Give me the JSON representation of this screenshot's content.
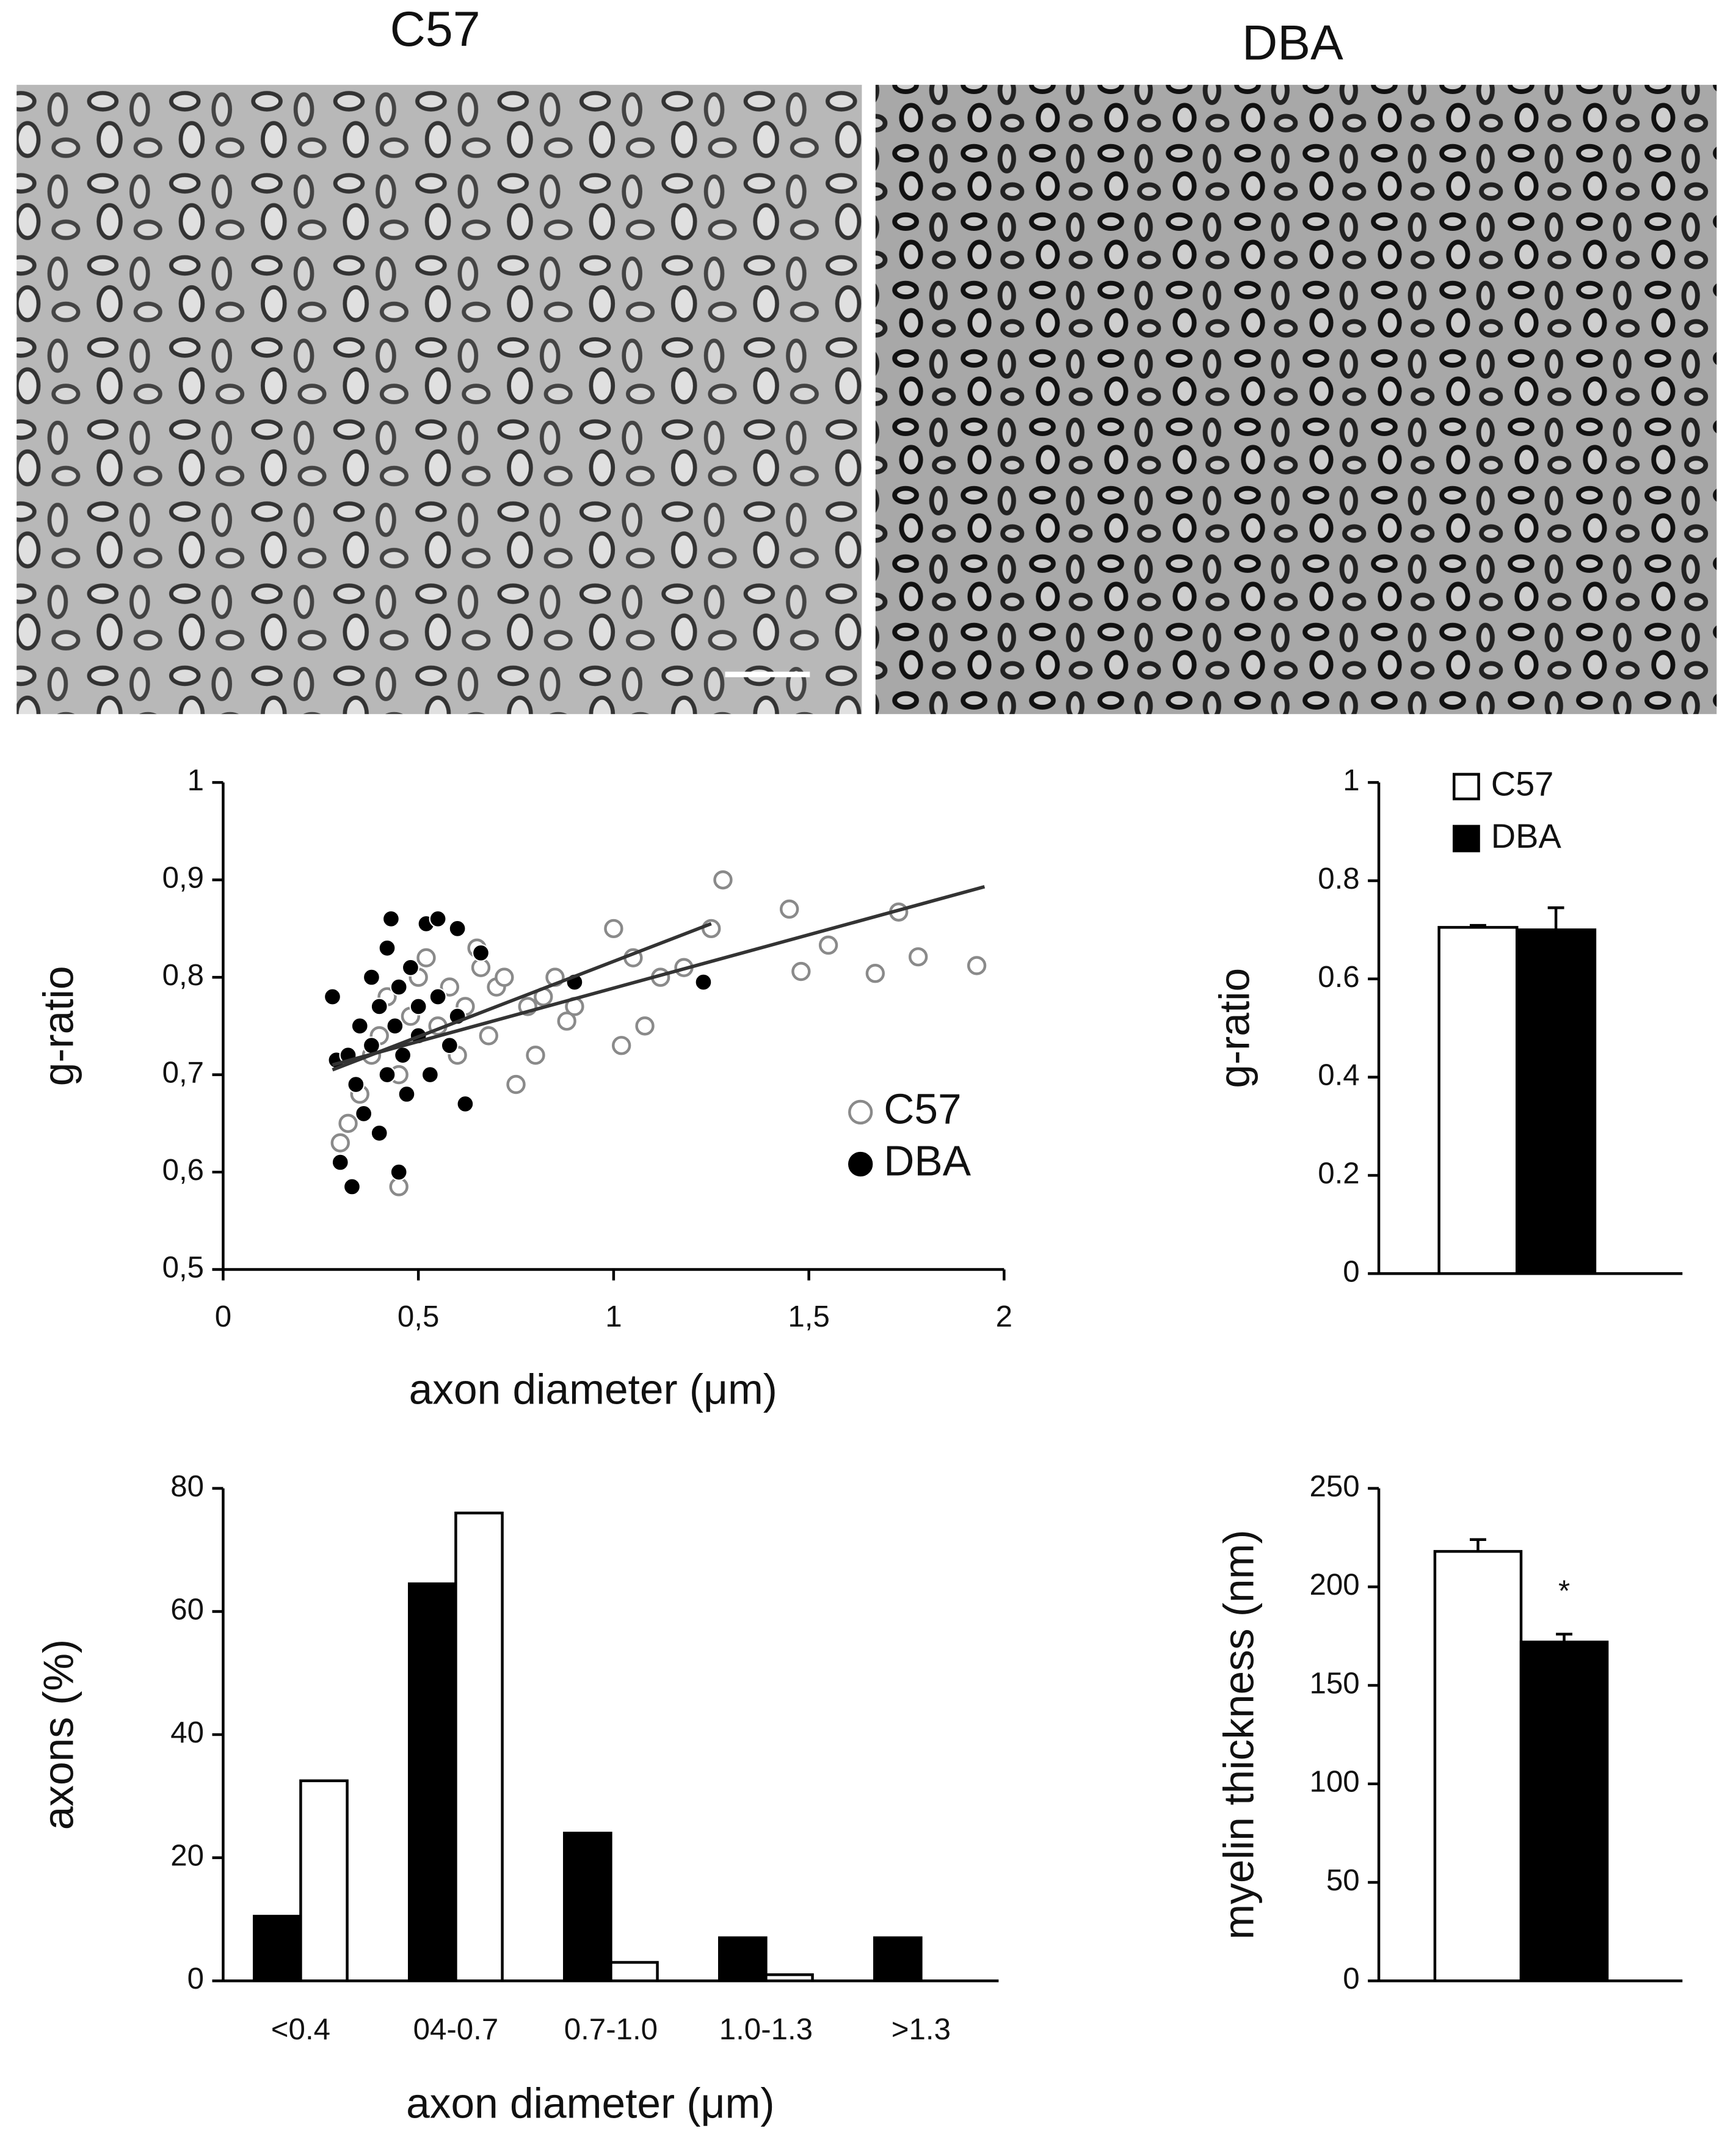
{
  "images": [
    {
      "label": "C57"
    },
    {
      "label": "DBA"
    }
  ],
  "chart_data": [
    {
      "type": "scatter",
      "xlabel": "axon diameter (μm)",
      "ylabel": "g-ratio",
      "xlim": [
        0,
        2
      ],
      "xticks": [
        0,
        {
          "value": 0.5,
          "label": "0,5"
        },
        1,
        {
          "value": 1.5,
          "label": "1,5"
        },
        2
      ],
      "ylim": [
        0.5,
        1
      ],
      "yticks": [
        {
          "value": 0.5,
          "label": "0,5"
        },
        {
          "value": 0.6,
          "label": "0,6"
        },
        {
          "value": 0.7,
          "label": "0,7"
        },
        {
          "value": 0.8,
          "label": "0,8"
        },
        {
          "value": 0.9,
          "label": "0,9"
        },
        1
      ],
      "legend": "lower right",
      "series": [
        {
          "name": "C57",
          "marker": "open",
          "color": "#8a8a8a",
          "x": [
            0.3,
            0.32,
            0.35,
            0.38,
            0.4,
            0.42,
            0.45,
            0.45,
            0.48,
            0.5,
            0.52,
            0.55,
            0.58,
            0.6,
            0.62,
            0.65,
            0.66,
            0.68,
            0.7,
            0.72,
            0.75,
            0.78,
            0.8,
            0.82,
            0.85,
            0.88,
            0.9,
            1.0,
            1.02,
            1.05,
            1.08,
            1.12,
            1.18,
            1.25,
            1.28,
            1.45,
            1.48,
            1.55,
            1.67,
            1.73,
            1.78,
            1.93
          ],
          "y": [
            0.63,
            0.65,
            0.68,
            0.72,
            0.74,
            0.78,
            0.585,
            0.7,
            0.76,
            0.8,
            0.82,
            0.75,
            0.79,
            0.72,
            0.77,
            0.83,
            0.81,
            0.74,
            0.79,
            0.8,
            0.69,
            0.77,
            0.72,
            0.78,
            0.8,
            0.755,
            0.77,
            0.85,
            0.73,
            0.82,
            0.75,
            0.8,
            0.81,
            0.85,
            0.9,
            0.87,
            0.806,
            0.833,
            0.804,
            0.867,
            0.821,
            0.812
          ]
        },
        {
          "name": "DBA",
          "marker": "filled",
          "color": "#000000",
          "x": [
            0.28,
            0.29,
            0.3,
            0.32,
            0.33,
            0.34,
            0.35,
            0.36,
            0.38,
            0.38,
            0.4,
            0.4,
            0.42,
            0.42,
            0.43,
            0.44,
            0.45,
            0.45,
            0.46,
            0.47,
            0.48,
            0.5,
            0.5,
            0.52,
            0.53,
            0.55,
            0.55,
            0.58,
            0.6,
            0.6,
            0.62,
            0.66,
            0.9,
            1.23
          ],
          "y": [
            0.78,
            0.715,
            0.61,
            0.72,
            0.585,
            0.69,
            0.75,
            0.66,
            0.73,
            0.8,
            0.77,
            0.64,
            0.7,
            0.83,
            0.86,
            0.75,
            0.6,
            0.79,
            0.72,
            0.68,
            0.81,
            0.74,
            0.77,
            0.855,
            0.7,
            0.86,
            0.78,
            0.73,
            0.85,
            0.76,
            0.67,
            0.825,
            0.795,
            0.795
          ]
        }
      ],
      "trend_lines": [
        {
          "color": "#333333",
          "x": [
            0.28,
            1.95
          ],
          "y": [
            0.71,
            0.893
          ]
        },
        {
          "color": "#333333",
          "x": [
            0.28,
            1.25
          ],
          "y": [
            0.705,
            0.855
          ]
        }
      ]
    },
    {
      "type": "bar",
      "ylabel": "g-ratio",
      "ylim": [
        0,
        1
      ],
      "yticks": [
        0,
        0.2,
        0.4,
        0.6,
        0.8,
        1
      ],
      "legend": "upper left",
      "series": [
        {
          "name": "C57",
          "color": "#ffffff",
          "values": [
            0.705
          ],
          "errors": [
            0.004
          ]
        },
        {
          "name": "DBA",
          "color": "#000000",
          "values": [
            0.7
          ],
          "errors": [
            0.045
          ]
        }
      ]
    },
    {
      "type": "bar",
      "xlabel": "axon diameter (μm)",
      "ylabel": "axons (%)",
      "ylim": [
        0,
        80
      ],
      "yticks": [
        0,
        20,
        40,
        60,
        80
      ],
      "categories": [
        "<0.4",
        "04-0.7",
        "0.7-1.0",
        "1.0-1.3",
        ">1.3"
      ],
      "series": [
        {
          "color": "#000000",
          "values": [
            10.5,
            64.5,
            24,
            7,
            7
          ]
        },
        {
          "color": "#ffffff",
          "values": [
            32.5,
            76,
            3,
            1,
            0
          ]
        }
      ]
    },
    {
      "type": "bar",
      "ylabel": "myelin thickness (nm)",
      "ylim": [
        0,
        250
      ],
      "yticks": [
        0,
        50,
        100,
        150,
        200,
        250
      ],
      "series": [
        {
          "color": "#ffffff",
          "values": [
            218
          ],
          "errors": [
            6
          ]
        },
        {
          "color": "#000000",
          "values": [
            172
          ],
          "errors": [
            4
          ]
        }
      ],
      "annotation": "*"
    }
  ]
}
